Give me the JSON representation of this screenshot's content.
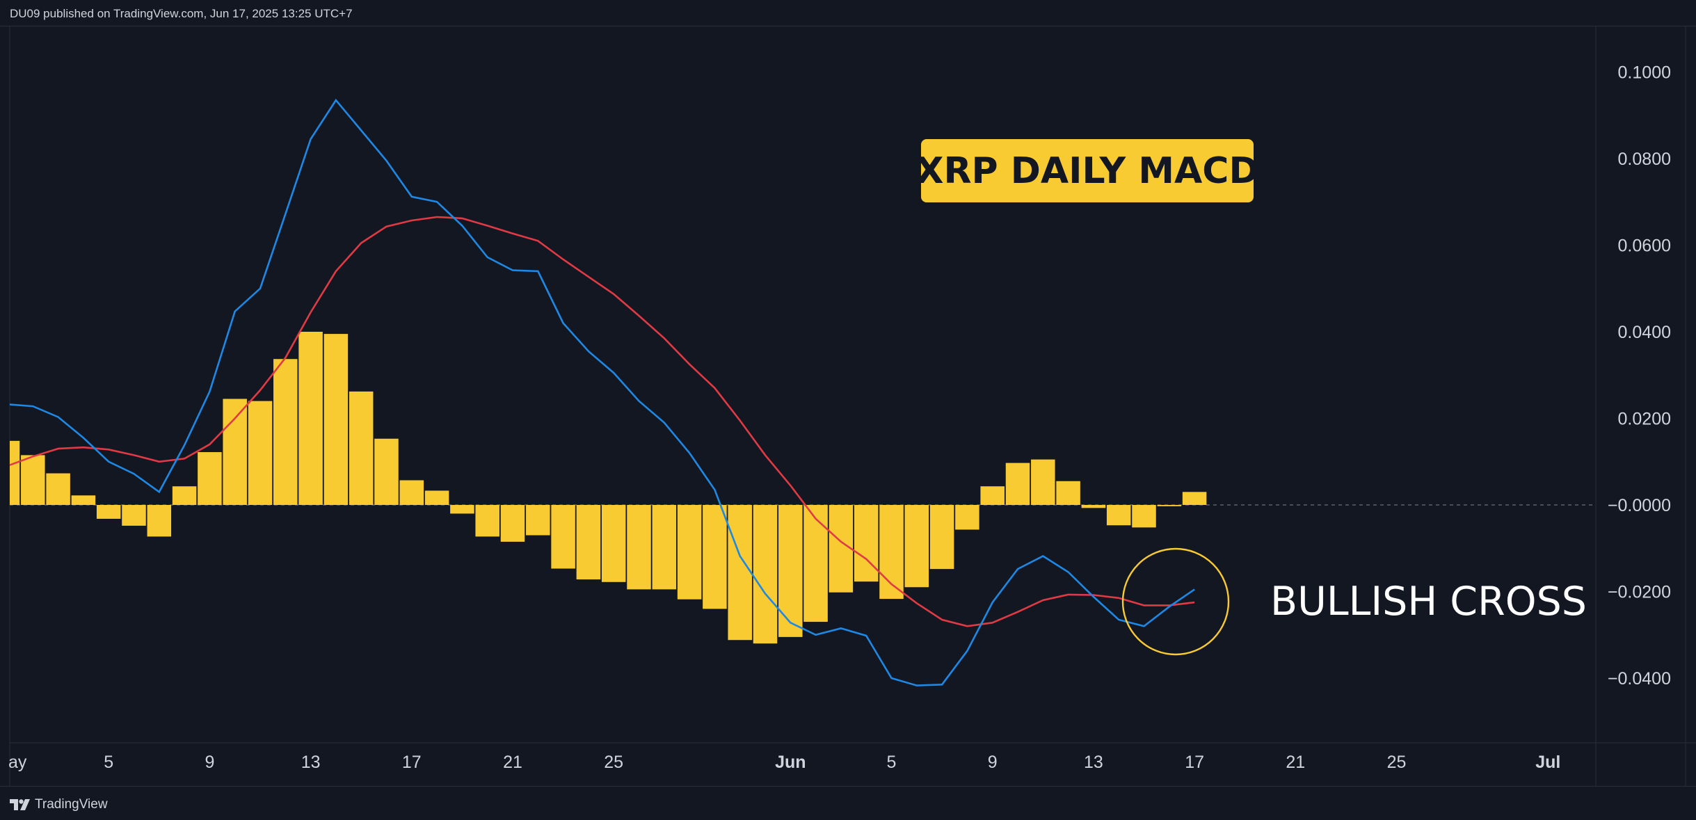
{
  "header": {
    "publish_info": "DU09 published on TradingView.com, Jun 17, 2025 13:25 UTC+7"
  },
  "footer": {
    "brand": "TradingView",
    "logo_icon": "tradingview-logo-icon"
  },
  "colors": {
    "background": "#131722",
    "histogram": "#f9cb32",
    "macd_line": "#1e88e5",
    "signal_line": "#e03a45",
    "grid_text": "#d1d4dc",
    "annotation_box": "#f9cb32",
    "circle": "#f9cb32"
  },
  "chart_data": {
    "type": "bar",
    "title": "XRP DAILY MACD",
    "annotation": "BULLISH CROSS",
    "ylim": [
      -0.055,
      0.11
    ],
    "yticks": [
      "0.1000",
      "0.0800",
      "0.0600",
      "0.0400",
      "0.0200",
      "−0.0000",
      "−0.0200",
      "−0.0400"
    ],
    "ytick_values": [
      0.1,
      0.08,
      0.06,
      0.04,
      0.02,
      0,
      -0.02,
      -0.04
    ],
    "xticks": [
      {
        "label": "ay",
        "day": 1
      },
      {
        "label": "5",
        "day": 5
      },
      {
        "label": "9",
        "day": 9
      },
      {
        "label": "13",
        "day": 13
      },
      {
        "label": "17",
        "day": 17
      },
      {
        "label": "21",
        "day": 21
      },
      {
        "label": "25",
        "day": 25
      },
      {
        "label": "Jun",
        "day": 32,
        "bold": true
      },
      {
        "label": "5",
        "day": 36
      },
      {
        "label": "9",
        "day": 40
      },
      {
        "label": "13",
        "day": 44
      },
      {
        "label": "17",
        "day": 48
      },
      {
        "label": "21",
        "day": 52
      },
      {
        "label": "25",
        "day": 56
      },
      {
        "label": "Jul",
        "day": 62,
        "bold": true
      }
    ],
    "x_start_day": 1,
    "histogram": {
      "name": "Histogram",
      "values": [
        0.0148,
        0.0115,
        0.0073,
        0.0022,
        -0.0032,
        -0.0048,
        -0.0073,
        0.0043,
        0.0122,
        0.0245,
        0.024,
        0.0337,
        0.04,
        0.0395,
        0.0262,
        0.0153,
        0.0057,
        0.0033,
        -0.002,
        -0.0073,
        -0.0085,
        -0.007,
        -0.0147,
        -0.0172,
        -0.0178,
        -0.0195,
        -0.0195,
        -0.0218,
        -0.024,
        -0.0312,
        -0.032,
        -0.0305,
        -0.027,
        -0.0202,
        -0.0177,
        -0.0217,
        -0.019,
        -0.0148,
        -0.0057,
        0.0043,
        0.0097,
        0.0105,
        0.0055,
        -0.0007,
        -0.0047,
        -0.0052,
        -0.0003,
        0.003
      ]
    },
    "series": [
      {
        "values": [
          0.0232,
          0.0228,
          0.0203,
          0.0155,
          0.01,
          0.0072,
          0.003,
          0.0138,
          0.0262,
          0.0447,
          0.05,
          0.0672,
          0.0845,
          0.0935,
          0.0865,
          0.0795,
          0.0712,
          0.07,
          0.0645,
          0.0572,
          0.0542,
          0.054,
          0.042,
          0.0355,
          0.0305,
          0.024,
          0.019,
          0.012,
          0.0035,
          -0.0118,
          -0.0205,
          -0.0272,
          -0.03,
          -0.0285,
          -0.0302,
          -0.04,
          -0.0417,
          -0.0415,
          -0.0337,
          -0.0225,
          -0.0148,
          -0.0118,
          -0.0155,
          -0.0212,
          -0.0265,
          -0.028,
          -0.0235,
          -0.0195
        ]
      },
      {
        "values": [
          0.0092,
          0.0112,
          0.013,
          0.0133,
          0.0128,
          0.0115,
          0.01,
          0.0107,
          0.014,
          0.02,
          0.0265,
          0.034,
          0.0445,
          0.054,
          0.0605,
          0.0643,
          0.0657,
          0.0665,
          0.0662,
          0.0645,
          0.0627,
          0.061,
          0.0567,
          0.0527,
          0.0487,
          0.0437,
          0.0385,
          0.0325,
          0.027,
          0.0195,
          0.0115,
          0.0045,
          -0.0032,
          -0.0085,
          -0.0125,
          -0.0183,
          -0.0227,
          -0.0265,
          -0.028,
          -0.0272,
          -0.0247,
          -0.022,
          -0.0207,
          -0.0208,
          -0.0215,
          -0.0232,
          -0.0232,
          -0.0225
        ]
      }
    ]
  }
}
